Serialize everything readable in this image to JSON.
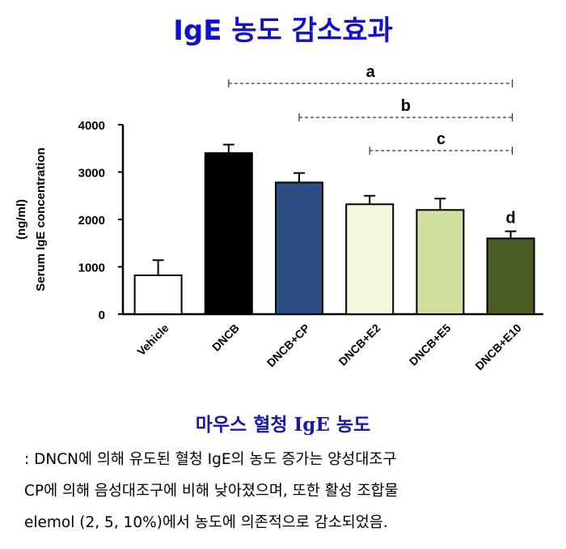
{
  "title": "IgE 농도 감소효과",
  "subtitle": "마우스 혈청 IgE 농도",
  "caption_lines": [
    ": DNCN에 의해 유도된 혈청 IgE의 농도 증가는 양성대조구",
    "CP에 의해 음성대조구에 비해 낮아졌으며, 또한 활성 조합물",
    "elemol (2, 5, 10%)에서 농도에 의존적으로 감소되었음."
  ],
  "chart_data": {
    "type": "bar",
    "categories": [
      "Vehicle",
      "DNCB",
      "DNCB+CP",
      "DNCB+E2",
      "DNCB+E5",
      "DNCB+E10"
    ],
    "values": [
      820,
      3400,
      2780,
      2320,
      2200,
      1600
    ],
    "errors": [
      320,
      180,
      200,
      180,
      240,
      150
    ],
    "bar_colors": [
      "#ffffff",
      "#000000",
      "#2c4e84",
      "#f6fadc",
      "#cfe0a0",
      "#4a5c24"
    ],
    "ylabel_line1": "(ng/ml)",
    "ylabel_line2": "Serum IgE concentration",
    "ylim": [
      0,
      4000
    ],
    "yticks": [
      "0",
      "1000",
      "2000",
      "3000",
      "4000"
    ],
    "significance": [
      {
        "label": "a",
        "from": "DNCB",
        "to": "DNCB+E10"
      },
      {
        "label": "b",
        "from": "DNCB+CP",
        "to": "DNCB+E10"
      },
      {
        "label": "c",
        "from": "DNCB+E2",
        "to": "DNCB+E10"
      }
    ],
    "bar_annotation": {
      "category": "DNCB+E10",
      "label": "d"
    }
  }
}
